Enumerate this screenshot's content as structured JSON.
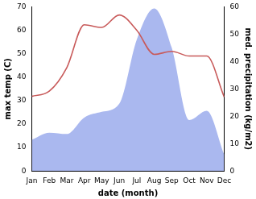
{
  "chart_data": {
    "type": "line",
    "x_label": "date (month)",
    "y_label": "max temp (C)",
    "y2_label": "med. precipitation (kg/m2)",
    "categories": [
      "Jan",
      "Feb",
      "Mar",
      "Apr",
      "May",
      "Jun",
      "Jul",
      "Aug",
      "Sep",
      "Oct",
      "Nov",
      "Dec"
    ],
    "series": [
      {
        "name": "max temp",
        "type": "line",
        "color": "#c85a5a",
        "values": [
          31.8,
          34,
          44,
          62.3,
          61.2,
          66.5,
          60,
          49.7,
          51,
          49,
          49,
          31.5
        ]
      },
      {
        "name": "med. precipitation",
        "type": "area",
        "color": "#aab8ef",
        "axis": "y2",
        "values": [
          11.4,
          14,
          13.5,
          19.5,
          21.6,
          24.6,
          48,
          59.4,
          45,
          18.6,
          22,
          6
        ]
      }
    ],
    "ylim": [
      0,
      70
    ],
    "yticks": [
      0,
      10,
      20,
      30,
      40,
      50,
      60,
      70
    ],
    "y2lim": [
      0,
      60
    ],
    "y2ticks": [
      0,
      10,
      20,
      30,
      40,
      50,
      60
    ],
    "grid": false
  }
}
